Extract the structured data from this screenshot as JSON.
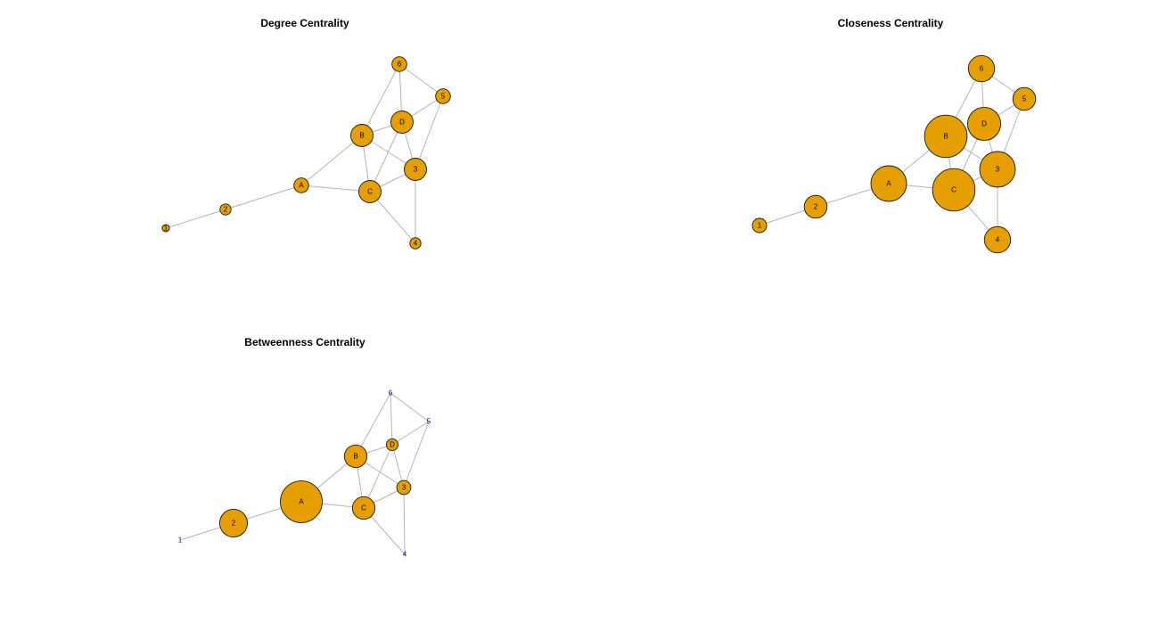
{
  "colors": {
    "node_fill": "#e69f00",
    "edge": "#b5b5b5",
    "label": "#000000",
    "small_label": "#00008b"
  },
  "edges": [
    [
      "1",
      "2"
    ],
    [
      "2",
      "A"
    ],
    [
      "A",
      "B"
    ],
    [
      "A",
      "C"
    ],
    [
      "B",
      "C"
    ],
    [
      "B",
      "D"
    ],
    [
      "B",
      "3"
    ],
    [
      "B",
      "6"
    ],
    [
      "C",
      "D"
    ],
    [
      "C",
      "3"
    ],
    [
      "C",
      "4"
    ],
    [
      "D",
      "3"
    ],
    [
      "D",
      "5"
    ],
    [
      "D",
      "6"
    ],
    [
      "3",
      "4"
    ],
    [
      "3",
      "5"
    ],
    [
      "5",
      "6"
    ]
  ],
  "panels": [
    {
      "id": "degree",
      "title": "Degree Centrality",
      "nodes": [
        {
          "id": "1",
          "label": "1",
          "value": 1
        },
        {
          "id": "2",
          "label": "2",
          "value": 2
        },
        {
          "id": "A",
          "label": "A",
          "value": 3
        },
        {
          "id": "B",
          "label": "B",
          "value": 5
        },
        {
          "id": "C",
          "label": "C",
          "value": 5
        },
        {
          "id": "D",
          "label": "D",
          "value": 5
        },
        {
          "id": "3",
          "label": "3",
          "value": 5
        },
        {
          "id": "4",
          "label": "4",
          "value": 2
        },
        {
          "id": "5",
          "label": "5",
          "value": 3
        },
        {
          "id": "6",
          "label": "6",
          "value": 3
        }
      ]
    },
    {
      "id": "closeness",
      "title": "Closeness Centrality",
      "nodes": [
        {
          "id": "1",
          "label": "1",
          "value": 0.31
        },
        {
          "id": "2",
          "label": "2",
          "value": 0.41
        },
        {
          "id": "A",
          "label": "A",
          "value": 0.56
        },
        {
          "id": "B",
          "label": "B",
          "value": 0.64
        },
        {
          "id": "C",
          "label": "C",
          "value": 0.64
        },
        {
          "id": "D",
          "label": "D",
          "value": 0.53
        },
        {
          "id": "3",
          "label": "3",
          "value": 0.56
        },
        {
          "id": "4",
          "label": "4",
          "value": 0.45
        },
        {
          "id": "5",
          "label": "5",
          "value": 0.41
        },
        {
          "id": "6",
          "label": "6",
          "value": 0.45
        }
      ]
    },
    {
      "id": "betweenness",
      "title": "Betweenness Centrality",
      "nodes": [
        {
          "id": "1",
          "label": "1",
          "value": 0
        },
        {
          "id": "2",
          "label": "2",
          "value": 8
        },
        {
          "id": "A",
          "label": "A",
          "value": 14
        },
        {
          "id": "B",
          "label": "B",
          "value": 5.8
        },
        {
          "id": "C",
          "label": "C",
          "value": 5.8
        },
        {
          "id": "D",
          "label": "D",
          "value": 1.2
        },
        {
          "id": "3",
          "label": "3",
          "value": 2.2
        },
        {
          "id": "4",
          "label": "4",
          "value": 0
        },
        {
          "id": "5",
          "label": "5",
          "value": 0
        },
        {
          "id": "6",
          "label": "6",
          "value": 0
        }
      ]
    }
  ]
}
